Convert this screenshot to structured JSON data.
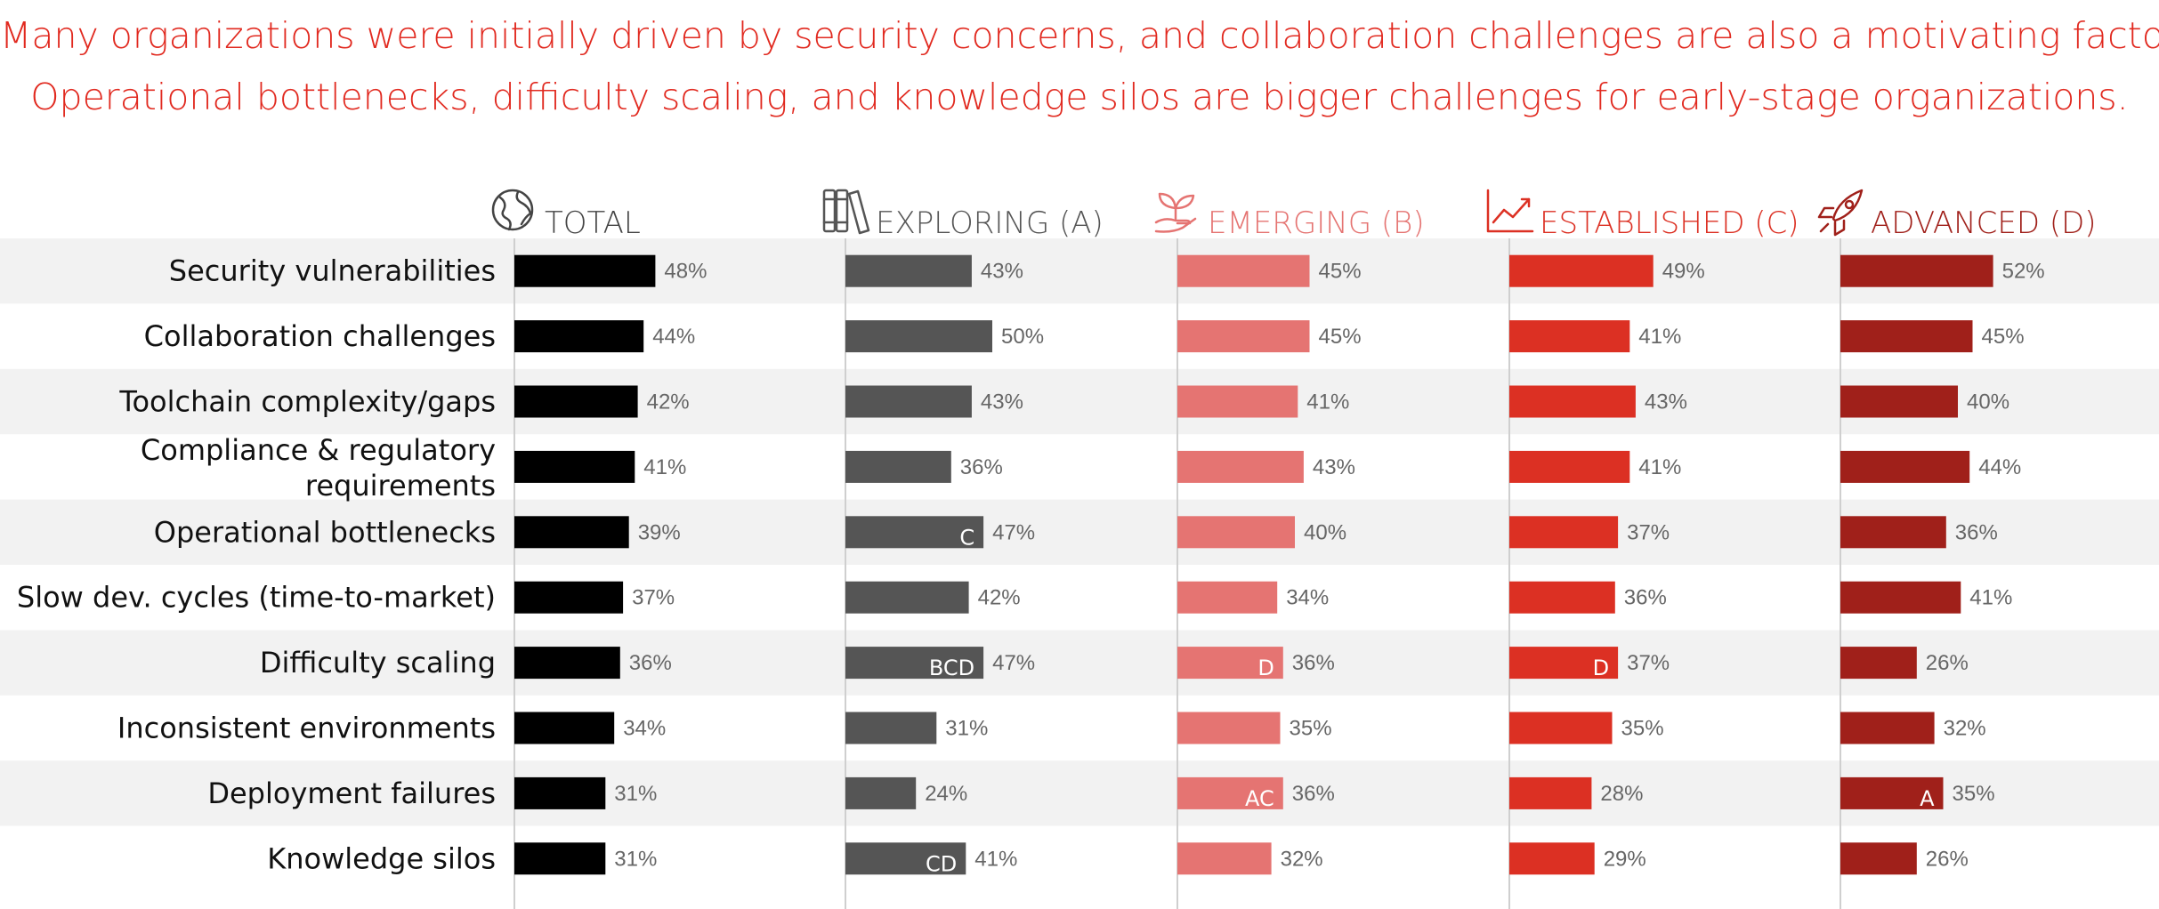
{
  "headline": {
    "line1": "Many organizations were initially driven by security concerns, and collaboration challenges are also a motivating factor.",
    "line2": "Operational bottlenecks, difficulty scaling, and knowledge silos are bigger challenges for early-stage organizations."
  },
  "chart_data": {
    "type": "bar",
    "orientation": "horizontal",
    "title": "",
    "xlabel": "",
    "ylabel": "",
    "xlim": [
      0,
      100
    ],
    "unit": "%",
    "categories": [
      [
        "Security vulnerabilities"
      ],
      [
        "Collaboration challenges"
      ],
      [
        "Toolchain complexity/gaps"
      ],
      [
        "Compliance & regulatory",
        "requirements"
      ],
      [
        "Operational bottlenecks"
      ],
      [
        "Slow dev. cycles (time-to-market)"
      ],
      [
        "Difficulty scaling"
      ],
      [
        "Inconsistent environments"
      ],
      [
        "Deployment failures"
      ],
      [
        "Knowledge silos"
      ]
    ],
    "series": [
      {
        "name": "TOTAL",
        "icon": "globe-icon",
        "color": "#000000",
        "title_color": "#444444",
        "values": [
          48,
          44,
          42,
          41,
          39,
          37,
          36,
          34,
          31,
          31
        ],
        "labels": [
          "48%",
          "44%",
          "42%",
          "41%",
          "39%",
          "37%",
          "36%",
          "34%",
          "31%",
          "31%"
        ],
        "significance": [
          "",
          "",
          "",
          "",
          "",
          "",
          "",
          "",
          "",
          ""
        ]
      },
      {
        "name": "EXPLORING (A)",
        "icon": "books-icon",
        "color": "#555555",
        "title_color": "#555555",
        "values": [
          43,
          50,
          43,
          36,
          47,
          42,
          47,
          31,
          24,
          41
        ],
        "labels": [
          "43%",
          "50%",
          "43%",
          "36%",
          "47%",
          "42%",
          "47%",
          "31%",
          "24%",
          "41%"
        ],
        "significance": [
          "",
          "",
          "",
          "",
          "C",
          "",
          "BCD",
          "",
          "",
          "CD"
        ]
      },
      {
        "name": "EMERGING (B)",
        "icon": "sprout-icon",
        "color": "#e57472",
        "title_color": "#e57472",
        "values": [
          45,
          45,
          41,
          43,
          40,
          34,
          36,
          35,
          36,
          32
        ],
        "labels": [
          "45%",
          "45%",
          "41%",
          "43%",
          "40%",
          "34%",
          "36%",
          "35%",
          "36%",
          "32%"
        ],
        "significance": [
          "",
          "",
          "",
          "",
          "",
          "",
          "D",
          "",
          "AC",
          ""
        ]
      },
      {
        "name": "ESTABLISHED (C)",
        "icon": "trend-chart-icon",
        "color": "#dc3023",
        "title_color": "#dc3023",
        "values": [
          49,
          41,
          43,
          41,
          37,
          36,
          37,
          35,
          28,
          29
        ],
        "labels": [
          "49%",
          "41%",
          "43%",
          "41%",
          "37%",
          "36%",
          "37%",
          "35%",
          "28%",
          "29%"
        ],
        "significance": [
          "",
          "",
          "",
          "",
          "",
          "",
          "D",
          "",
          "",
          ""
        ]
      },
      {
        "name": "ADVANCED (D)",
        "icon": "rocket-icon",
        "color": "#a0201a",
        "title_color": "#a0201a",
        "values": [
          52,
          45,
          40,
          44,
          36,
          41,
          26,
          32,
          35,
          26
        ],
        "labels": [
          "52%",
          "45%",
          "40%",
          "44%",
          "36%",
          "41%",
          "26%",
          "32%",
          "35%",
          "26%"
        ],
        "significance": [
          "",
          "",
          "",
          "",
          "",
          "",
          "",
          "",
          "A",
          ""
        ]
      }
    ]
  }
}
